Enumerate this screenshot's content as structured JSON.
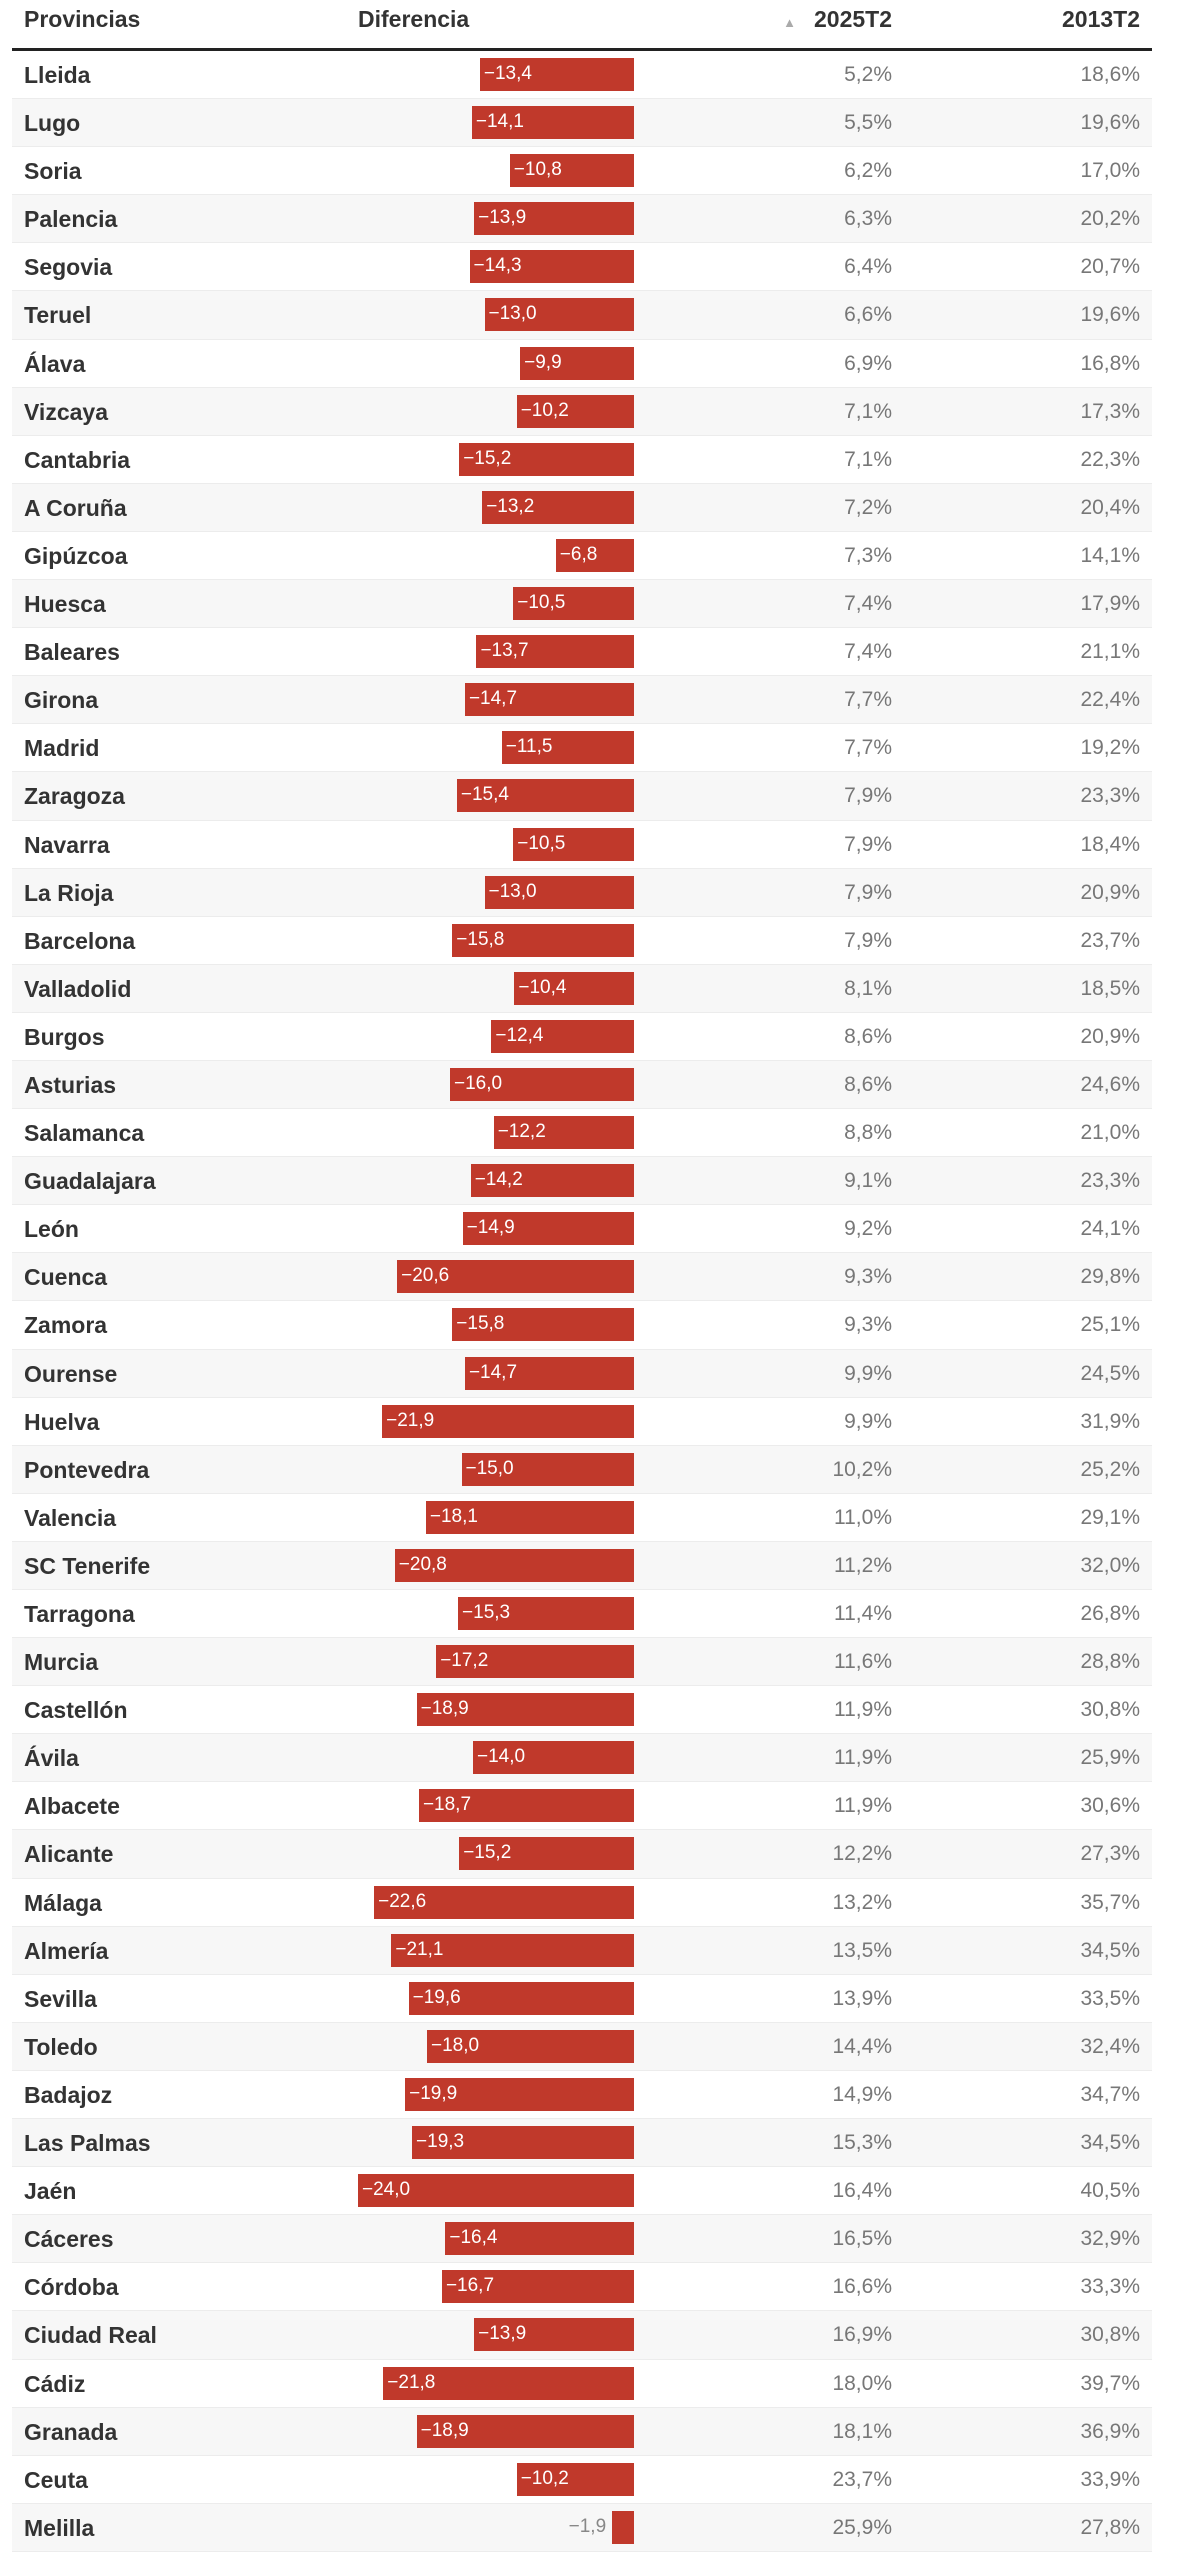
{
  "header": {
    "provincias": "Provincias",
    "diferencia": "Diferencia",
    "col2025": "2025T2",
    "col2013": "2013T2",
    "sort_icon": "sort-up-icon"
  },
  "bar_color": "#c0392b",
  "rows": [
    {
      "name": "Lleida",
      "diff": "−13,4",
      "d": -13.4,
      "v2025": "5,2%",
      "v2013": "18,6%"
    },
    {
      "name": "Lugo",
      "diff": "−14,1",
      "d": -14.1,
      "v2025": "5,5%",
      "v2013": "19,6%"
    },
    {
      "name": "Soria",
      "diff": "−10,8",
      "d": -10.8,
      "v2025": "6,2%",
      "v2013": "17,0%"
    },
    {
      "name": "Palencia",
      "diff": "−13,9",
      "d": -13.9,
      "v2025": "6,3%",
      "v2013": "20,2%"
    },
    {
      "name": "Segovia",
      "diff": "−14,3",
      "d": -14.3,
      "v2025": "6,4%",
      "v2013": "20,7%"
    },
    {
      "name": "Teruel",
      "diff": "−13,0",
      "d": -13.0,
      "v2025": "6,6%",
      "v2013": "19,6%"
    },
    {
      "name": "Álava",
      "diff": "−9,9",
      "d": -9.9,
      "v2025": "6,9%",
      "v2013": "16,8%"
    },
    {
      "name": "Vizcaya",
      "diff": "−10,2",
      "d": -10.2,
      "v2025": "7,1%",
      "v2013": "17,3%"
    },
    {
      "name": "Cantabria",
      "diff": "−15,2",
      "d": -15.2,
      "v2025": "7,1%",
      "v2013": "22,3%"
    },
    {
      "name": "A Coruña",
      "diff": "−13,2",
      "d": -13.2,
      "v2025": "7,2%",
      "v2013": "20,4%"
    },
    {
      "name": "Gipúzcoa",
      "diff": "−6,8",
      "d": -6.8,
      "v2025": "7,3%",
      "v2013": "14,1%"
    },
    {
      "name": "Huesca",
      "diff": "−10,5",
      "d": -10.5,
      "v2025": "7,4%",
      "v2013": "17,9%"
    },
    {
      "name": "Baleares",
      "diff": "−13,7",
      "d": -13.7,
      "v2025": "7,4%",
      "v2013": "21,1%"
    },
    {
      "name": "Girona",
      "diff": "−14,7",
      "d": -14.7,
      "v2025": "7,7%",
      "v2013": "22,4%"
    },
    {
      "name": "Madrid",
      "diff": "−11,5",
      "d": -11.5,
      "v2025": "7,7%",
      "v2013": "19,2%"
    },
    {
      "name": "Zaragoza",
      "diff": "−15,4",
      "d": -15.4,
      "v2025": "7,9%",
      "v2013": "23,3%"
    },
    {
      "name": "Navarra",
      "diff": "−10,5",
      "d": -10.5,
      "v2025": "7,9%",
      "v2013": "18,4%"
    },
    {
      "name": "La Rioja",
      "diff": "−13,0",
      "d": -13.0,
      "v2025": "7,9%",
      "v2013": "20,9%"
    },
    {
      "name": "Barcelona",
      "diff": "−15,8",
      "d": -15.8,
      "v2025": "7,9%",
      "v2013": "23,7%"
    },
    {
      "name": "Valladolid",
      "diff": "−10,4",
      "d": -10.4,
      "v2025": "8,1%",
      "v2013": "18,5%"
    },
    {
      "name": "Burgos",
      "diff": "−12,4",
      "d": -12.4,
      "v2025": "8,6%",
      "v2013": "20,9%"
    },
    {
      "name": "Asturias",
      "diff": "−16,0",
      "d": -16.0,
      "v2025": "8,6%",
      "v2013": "24,6%"
    },
    {
      "name": "Salamanca",
      "diff": "−12,2",
      "d": -12.2,
      "v2025": "8,8%",
      "v2013": "21,0%"
    },
    {
      "name": "Guadalajara",
      "diff": "−14,2",
      "d": -14.2,
      "v2025": "9,1%",
      "v2013": "23,3%"
    },
    {
      "name": "León",
      "diff": "−14,9",
      "d": -14.9,
      "v2025": "9,2%",
      "v2013": "24,1%"
    },
    {
      "name": "Cuenca",
      "diff": "−20,6",
      "d": -20.6,
      "v2025": "9,3%",
      "v2013": "29,8%"
    },
    {
      "name": "Zamora",
      "diff": "−15,8",
      "d": -15.8,
      "v2025": "9,3%",
      "v2013": "25,1%"
    },
    {
      "name": "Ourense",
      "diff": "−14,7",
      "d": -14.7,
      "v2025": "9,9%",
      "v2013": "24,5%"
    },
    {
      "name": "Huelva",
      "diff": "−21,9",
      "d": -21.9,
      "v2025": "9,9%",
      "v2013": "31,9%"
    },
    {
      "name": "Pontevedra",
      "diff": "−15,0",
      "d": -15.0,
      "v2025": "10,2%",
      "v2013": "25,2%"
    },
    {
      "name": "Valencia",
      "diff": "−18,1",
      "d": -18.1,
      "v2025": "11,0%",
      "v2013": "29,1%"
    },
    {
      "name": "SC Tenerife",
      "diff": "−20,8",
      "d": -20.8,
      "v2025": "11,2%",
      "v2013": "32,0%"
    },
    {
      "name": "Tarragona",
      "diff": "−15,3",
      "d": -15.3,
      "v2025": "11,4%",
      "v2013": "26,8%"
    },
    {
      "name": "Murcia",
      "diff": "−17,2",
      "d": -17.2,
      "v2025": "11,6%",
      "v2013": "28,8%"
    },
    {
      "name": "Castellón",
      "diff": "−18,9",
      "d": -18.9,
      "v2025": "11,9%",
      "v2013": "30,8%"
    },
    {
      "name": "Ávila",
      "diff": "−14,0",
      "d": -14.0,
      "v2025": "11,9%",
      "v2013": "25,9%"
    },
    {
      "name": "Albacete",
      "diff": "−18,7",
      "d": -18.7,
      "v2025": "11,9%",
      "v2013": "30,6%"
    },
    {
      "name": "Alicante",
      "diff": "−15,2",
      "d": -15.2,
      "v2025": "12,2%",
      "v2013": "27,3%"
    },
    {
      "name": "Málaga",
      "diff": "−22,6",
      "d": -22.6,
      "v2025": "13,2%",
      "v2013": "35,7%"
    },
    {
      "name": "Almería",
      "diff": "−21,1",
      "d": -21.1,
      "v2025": "13,5%",
      "v2013": "34,5%"
    },
    {
      "name": "Sevilla",
      "diff": "−19,6",
      "d": -19.6,
      "v2025": "13,9%",
      "v2013": "33,5%"
    },
    {
      "name": "Toledo",
      "diff": "−18,0",
      "d": -18.0,
      "v2025": "14,4%",
      "v2013": "32,4%"
    },
    {
      "name": "Badajoz",
      "diff": "−19,9",
      "d": -19.9,
      "v2025": "14,9%",
      "v2013": "34,7%"
    },
    {
      "name": "Las Palmas",
      "diff": "−19,3",
      "d": -19.3,
      "v2025": "15,3%",
      "v2013": "34,5%"
    },
    {
      "name": "Jaén",
      "diff": "−24,0",
      "d": -24.0,
      "v2025": "16,4%",
      "v2013": "40,5%"
    },
    {
      "name": "Cáceres",
      "diff": "−16,4",
      "d": -16.4,
      "v2025": "16,5%",
      "v2013": "32,9%"
    },
    {
      "name": "Córdoba",
      "diff": "−16,7",
      "d": -16.7,
      "v2025": "16,6%",
      "v2013": "33,3%"
    },
    {
      "name": "Ciudad Real",
      "diff": "−13,9",
      "d": -13.9,
      "v2025": "16,9%",
      "v2013": "30,8%"
    },
    {
      "name": "Cádiz",
      "diff": "−21,8",
      "d": -21.8,
      "v2025": "18,0%",
      "v2013": "39,7%"
    },
    {
      "name": "Granada",
      "diff": "−18,9",
      "d": -18.9,
      "v2025": "18,1%",
      "v2013": "36,9%"
    },
    {
      "name": "Ceuta",
      "diff": "−10,2",
      "d": -10.2,
      "v2025": "23,7%",
      "v2013": "33,9%"
    },
    {
      "name": "Melilla",
      "diff": "−1,9",
      "d": -1.9,
      "v2025": "25,9%",
      "v2013": "27,8%"
    }
  ]
}
